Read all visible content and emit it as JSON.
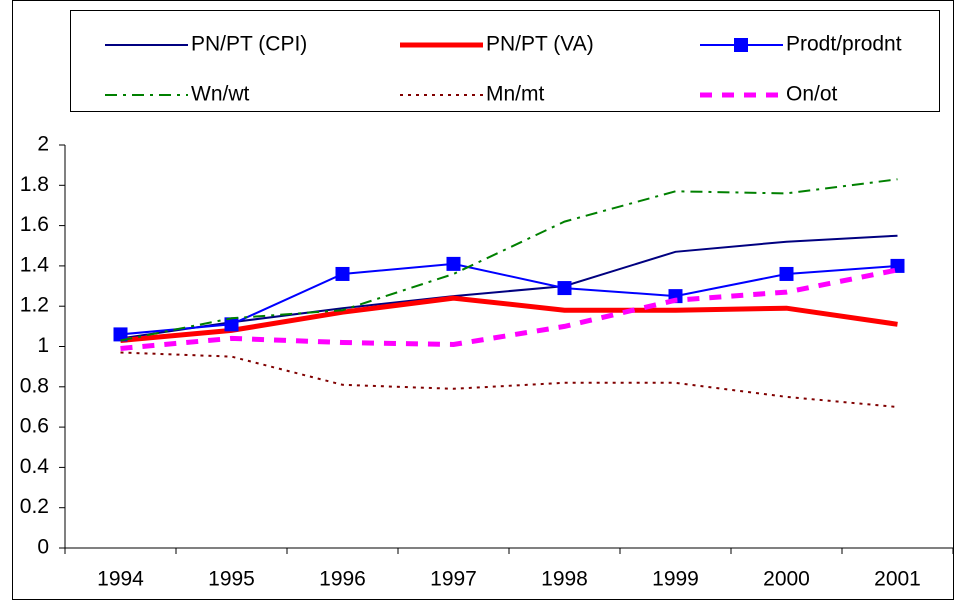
{
  "chart_data": {
    "type": "line",
    "categories": [
      "1994",
      "1995",
      "1996",
      "1997",
      "1998",
      "1999",
      "2000",
      "2001"
    ],
    "series": [
      {
        "name": "PN/PT (CPI)",
        "color": "#000080",
        "style": "solid",
        "values": [
          1.04,
          1.12,
          1.19,
          1.25,
          1.3,
          1.47,
          1.52,
          1.55
        ]
      },
      {
        "name": "PN/PT (VA)",
        "color": "#ff0000",
        "style": "thick",
        "values": [
          1.03,
          1.08,
          1.17,
          1.24,
          1.18,
          1.18,
          1.19,
          1.11
        ]
      },
      {
        "name": "Prodt/prodnt",
        "color": "#0000ff",
        "style": "solid",
        "marker": "square",
        "values": [
          1.06,
          1.11,
          1.36,
          1.41,
          1.29,
          1.25,
          1.36,
          1.4
        ]
      },
      {
        "name": "Wn/wt",
        "color": "#008000",
        "style": "dashdot",
        "values": [
          1.03,
          1.14,
          1.18,
          1.36,
          1.62,
          1.77,
          1.76,
          1.83
        ]
      },
      {
        "name": "Mn/mt",
        "color": "#800000",
        "style": "dotted",
        "values": [
          0.97,
          0.95,
          0.81,
          0.79,
          0.82,
          0.82,
          0.75,
          0.7
        ]
      },
      {
        "name": "On/ot",
        "color": "#ff00ff",
        "style": "dashed",
        "values": [
          0.99,
          1.04,
          1.02,
          1.01,
          1.1,
          1.23,
          1.27,
          1.38
        ]
      }
    ],
    "ylim": [
      0,
      2
    ],
    "yticks": [
      0,
      0.2,
      0.4,
      0.6,
      0.8,
      1,
      1.2,
      1.4,
      1.6,
      1.8,
      2
    ],
    "legend": "top"
  }
}
